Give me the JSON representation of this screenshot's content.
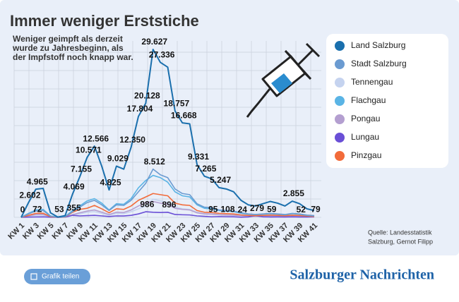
{
  "chart_data": {
    "type": "line",
    "title": "Immer weniger Erststiche",
    "subtitle": [
      "Weniger geimpft als derzeit",
      "wurde zu Jahresbeginn, als",
      "der Impfstoff noch knapp war."
    ],
    "source": [
      "Quelle: Landesstatistik",
      "Salzburg, Gernot Filipp"
    ],
    "share_button": "Grafik teilen",
    "brand": "Salzburger Nachrichten",
    "categories": [
      "KW 1",
      null,
      "KW 3",
      null,
      "KW 5",
      null,
      "KW 7",
      null,
      "KW 9",
      null,
      "KW 11",
      null,
      "KW 13",
      null,
      "KW 15",
      null,
      "KW 17",
      null,
      "KW 19",
      null,
      "KW 21",
      null,
      "KW 23",
      null,
      "KW 25",
      null,
      "KW 27",
      null,
      "KW 29",
      null,
      "KW 31",
      null,
      "KW 33",
      null,
      "KW 35",
      null,
      "KW 37",
      null,
      "KW 39",
      null,
      "KW 41"
    ],
    "ylim": [
      0,
      32000
    ],
    "series": [
      {
        "name": "Land Salzburg",
        "color": "#1a6fad",
        "values": [
          0,
          2602,
          4965,
          5100,
          800,
          53,
          300,
          4069,
          7155,
          10571,
          12566,
          9000,
          4825,
          9029,
          8500,
          12350,
          17804,
          20128,
          29627,
          27336,
          26500,
          18757,
          16668,
          16500,
          9331,
          7265,
          6800,
          5247,
          5000,
          4500,
          3000,
          2200,
          2000,
          2400,
          2800,
          2500,
          2000,
          2855,
          2400,
          1500,
          1200
        ],
        "value_labels": [
          "0",
          "2.602",
          "4.965",
          null,
          null,
          "53",
          null,
          "4.069",
          "7.155",
          "10.571",
          "12.566",
          null,
          "4.825",
          "9.029",
          null,
          "12.350",
          "17.804",
          "20.128",
          "29.627",
          "27.336",
          null,
          "18.757",
          "16.668",
          null,
          "9.331",
          "7.265",
          null,
          "5.247",
          null,
          null,
          null,
          null,
          null,
          null,
          null,
          null,
          null,
          "2.855",
          null,
          null,
          null
        ]
      },
      {
        "name": "Stadt  Salzburg",
        "color": "#6b9bd1",
        "values": [
          0,
          600,
          1100,
          1200,
          200,
          20,
          100,
          1000,
          1800,
          2600,
          3000,
          2200,
          1200,
          2200,
          2100,
          3000,
          4500,
          6000,
          8512,
          7500,
          7000,
          5000,
          4200,
          4000,
          2400,
          1800,
          1700,
          1300,
          1200,
          1100,
          800,
          600,
          500,
          600,
          700,
          600,
          500,
          700,
          600,
          400,
          300
        ],
        "value_labels": [
          null,
          null,
          null,
          null,
          null,
          null,
          null,
          null,
          null,
          null,
          null,
          null,
          null,
          null,
          null,
          null,
          null,
          null,
          "8.512",
          null,
          null,
          null,
          null,
          null,
          null,
          null,
          null,
          null,
          null,
          null,
          null,
          null,
          null,
          null,
          null,
          null,
          null,
          null,
          null,
          null,
          null
        ]
      },
      {
        "name": "Tennengau",
        "color": "#c5d3ef",
        "values": [
          0,
          200,
          400,
          400,
          80,
          5,
          40,
          350,
          600,
          900,
          1000,
          700,
          400,
          700,
          650,
          1000,
          1500,
          2000,
          3200,
          2900,
          2600,
          1800,
          1500,
          1400,
          900,
          700,
          650,
          500,
          450,
          420,
          300,
          250,
          200,
          220,
          260,
          230,
          200,
          260,
          230,
          150,
          100
        ]
      },
      {
        "name": "Flachgau",
        "color": "#5ab4e5",
        "values": [
          0,
          700,
          1300,
          1400,
          250,
          20,
          120,
          1200,
          2000,
          2900,
          3300,
          2500,
          1300,
          2400,
          2300,
          3300,
          5200,
          6500,
          7400,
          7000,
          6200,
          4500,
          3800,
          3600,
          2200,
          1600,
          1500,
          1200,
          1100,
          1000,
          700,
          550,
          500,
          550,
          650,
          550,
          450,
          650,
          550,
          350,
          250
        ]
      },
      {
        "name": "Pongau",
        "color": "#b49fd0",
        "values": [
          0,
          250,
          500,
          520,
          100,
          8,
          50,
          450,
          800,
          1100,
          1300,
          900,
          500,
          900,
          850,
          1300,
          2000,
          2600,
          2800,
          2500,
          2300,
          1600,
          1400,
          1300,
          800,
          600,
          550,
          450,
          400,
          380,
          280,
          220,
          180,
          200,
          240,
          210,
          180,
          240,
          210,
          140,
          90
        ]
      },
      {
        "name": "Lungau",
        "color": "#6a4fd6",
        "values": [
          0,
          40,
          72,
          80,
          20,
          2,
          30,
          355,
          250,
          300,
          350,
          250,
          150,
          250,
          240,
          350,
          600,
          986,
          900,
          850,
          896,
          500,
          450,
          420,
          250,
          180,
          95,
          140,
          108,
          100,
          24,
          70,
          279,
          90,
          59,
          70,
          60,
          80,
          52,
          60,
          79
        ],
        "value_labels": [
          null,
          null,
          "72",
          null,
          null,
          null,
          null,
          "355",
          null,
          null,
          null,
          null,
          null,
          null,
          null,
          null,
          null,
          "986",
          null,
          null,
          "896",
          null,
          null,
          null,
          null,
          null,
          "95",
          null,
          "108",
          null,
          "24",
          null,
          "279",
          null,
          "59",
          null,
          null,
          null,
          "52",
          null,
          "79"
        ]
      },
      {
        "name": "Pinzgau",
        "color": "#f26b3a",
        "values": [
          0,
          350,
          700,
          720,
          120,
          10,
          60,
          900,
          1400,
          1600,
          2100,
          1500,
          800,
          1500,
          1400,
          2000,
          3000,
          3600,
          4200,
          4000,
          3800,
          2500,
          2200,
          2100,
          1200,
          900,
          850,
          700,
          650,
          600,
          420,
          340,
          300,
          340,
          400,
          350,
          300,
          380,
          340,
          220,
          150
        ]
      }
    ]
  }
}
